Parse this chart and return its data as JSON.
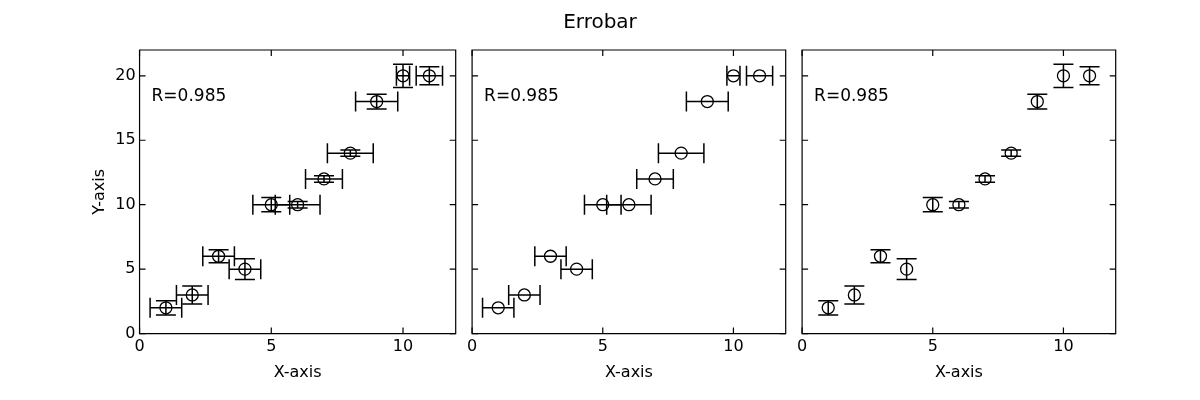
{
  "chart_data": [
    {
      "type": "other",
      "title": "Errobar"
    },
    {
      "type": "scatter",
      "xlabel": "X-axis",
      "ylabel": "Y-axis",
      "xlim": [
        0,
        12
      ],
      "ylim": [
        0,
        22
      ],
      "xticks": [
        0,
        5,
        10
      ],
      "yticks": [
        0,
        5,
        10,
        15,
        20
      ],
      "grid": false,
      "legend": false,
      "marker": "circle",
      "annotations": [
        "R=0.985"
      ],
      "series": [
        {
          "color": "#000000",
          "x": [
            1,
            2,
            3,
            4,
            5,
            6,
            7,
            8,
            9,
            10,
            11
          ],
          "values": [
            2,
            3,
            6,
            5,
            10,
            10,
            12,
            14,
            18,
            20,
            20
          ],
          "errors": [
            0.55,
            0.7,
            0.5,
            0.8,
            0.55,
            0.25,
            0.25,
            0.25,
            0.57,
            0.9,
            0.7
          ],
          "xerrors": [
            0.6,
            0.6,
            0.6,
            0.6,
            0.7,
            0.85,
            0.7,
            0.87,
            0.8,
            0.25,
            0.5
          ]
        }
      ]
    },
    {
      "type": "scatter",
      "xlabel": "X-axis",
      "xlim": [
        0,
        12
      ],
      "ylim": [
        0,
        22
      ],
      "xticks": [
        0,
        5,
        10
      ],
      "yticks": [
        0,
        5,
        10,
        15,
        20
      ],
      "tick_labels": "x",
      "grid": false,
      "legend": false,
      "marker": "circle",
      "annotations": [
        "R=0.985"
      ],
      "series": [
        {
          "color": "#000000",
          "x": [
            1,
            2,
            3,
            4,
            5,
            6,
            7,
            8,
            9,
            10,
            11
          ],
          "values": [
            2,
            3,
            6,
            5,
            10,
            10,
            12,
            14,
            18,
            20,
            20
          ],
          "xerrors": [
            0.6,
            0.6,
            0.6,
            0.6,
            0.7,
            0.85,
            0.7,
            0.87,
            0.8,
            0.25,
            0.5
          ]
        }
      ]
    },
    {
      "type": "scatter",
      "xlabel": "X-axis",
      "xlim": [
        0,
        12
      ],
      "ylim": [
        0,
        22
      ],
      "xticks": [
        0,
        5,
        10
      ],
      "yticks": [
        0,
        5,
        10,
        15,
        20
      ],
      "tick_labels": "x",
      "grid": false,
      "legend": false,
      "marker": "circle",
      "annotations": [
        "R=0.985"
      ],
      "series": [
        {
          "color": "#000000",
          "x": [
            1,
            2,
            3,
            4,
            5,
            6,
            7,
            8,
            9,
            10,
            11
          ],
          "values": [
            2,
            3,
            6,
            5,
            10,
            10,
            12,
            14,
            18,
            20,
            20
          ],
          "errors": [
            0.55,
            0.7,
            0.5,
            0.8,
            0.55,
            0.25,
            0.25,
            0.25,
            0.57,
            0.9,
            0.7
          ]
        }
      ]
    }
  ]
}
